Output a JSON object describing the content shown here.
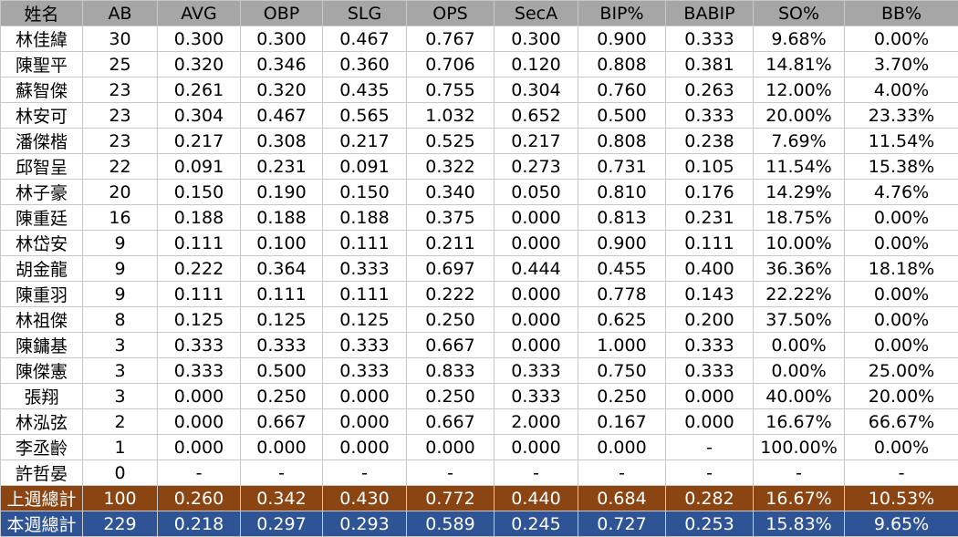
{
  "table": {
    "headers": [
      "姓名",
      "AB",
      "AVG",
      "OBP",
      "SLG",
      "OPS",
      "SecA",
      "BIP%",
      "BABIP",
      "SO%",
      "BB%"
    ],
    "rows": [
      [
        "林佳緯",
        "30",
        "0.300",
        "0.300",
        "0.467",
        "0.767",
        "0.300",
        "0.900",
        "0.333",
        "9.68%",
        "0.00%"
      ],
      [
        "陳聖平",
        "25",
        "0.320",
        "0.346",
        "0.360",
        "0.706",
        "0.120",
        "0.808",
        "0.381",
        "14.81%",
        "3.70%"
      ],
      [
        "蘇智傑",
        "23",
        "0.261",
        "0.320",
        "0.435",
        "0.755",
        "0.304",
        "0.760",
        "0.263",
        "12.00%",
        "4.00%"
      ],
      [
        "林安可",
        "23",
        "0.304",
        "0.467",
        "0.565",
        "1.032",
        "0.652",
        "0.500",
        "0.333",
        "20.00%",
        "23.33%"
      ],
      [
        "潘傑楷",
        "23",
        "0.217",
        "0.308",
        "0.217",
        "0.525",
        "0.217",
        "0.808",
        "0.238",
        "7.69%",
        "11.54%"
      ],
      [
        "邱智呈",
        "22",
        "0.091",
        "0.231",
        "0.091",
        "0.322",
        "0.273",
        "0.731",
        "0.105",
        "11.54%",
        "15.38%"
      ],
      [
        "林子豪",
        "20",
        "0.150",
        "0.190",
        "0.150",
        "0.340",
        "0.050",
        "0.810",
        "0.176",
        "14.29%",
        "4.76%"
      ],
      [
        "陳重廷",
        "16",
        "0.188",
        "0.188",
        "0.188",
        "0.375",
        "0.000",
        "0.813",
        "0.231",
        "18.75%",
        "0.00%"
      ],
      [
        "林岱安",
        "9",
        "0.111",
        "0.100",
        "0.111",
        "0.211",
        "0.000",
        "0.900",
        "0.111",
        "10.00%",
        "0.00%"
      ],
      [
        "胡金龍",
        "9",
        "0.222",
        "0.364",
        "0.333",
        "0.697",
        "0.444",
        "0.455",
        "0.400",
        "36.36%",
        "18.18%"
      ],
      [
        "陳重羽",
        "9",
        "0.111",
        "0.111",
        "0.111",
        "0.222",
        "0.000",
        "0.778",
        "0.143",
        "22.22%",
        "0.00%"
      ],
      [
        "林祖傑",
        "8",
        "0.125",
        "0.125",
        "0.125",
        "0.250",
        "0.000",
        "0.625",
        "0.200",
        "37.50%",
        "0.00%"
      ],
      [
        "陳鏞基",
        "3",
        "0.333",
        "0.333",
        "0.333",
        "0.667",
        "0.000",
        "1.000",
        "0.333",
        "0.00%",
        "0.00%"
      ],
      [
        "陳傑憲",
        "3",
        "0.333",
        "0.500",
        "0.333",
        "0.833",
        "0.333",
        "0.750",
        "0.333",
        "0.00%",
        "25.00%"
      ],
      [
        "張翔",
        "3",
        "0.000",
        "0.250",
        "0.000",
        "0.250",
        "0.333",
        "0.250",
        "0.000",
        "40.00%",
        "20.00%"
      ],
      [
        "林泓弦",
        "2",
        "0.000",
        "0.667",
        "0.000",
        "0.667",
        "2.000",
        "0.167",
        "0.000",
        "16.67%",
        "66.67%"
      ],
      [
        "李丞齡",
        "1",
        "0.000",
        "0.000",
        "0.000",
        "0.000",
        "0.000",
        "0.000",
        "-",
        "100.00%",
        "0.00%"
      ],
      [
        "許哲晏",
        "0",
        "-",
        "-",
        "-",
        "-",
        "-",
        "-",
        "-",
        "-",
        "-"
      ]
    ],
    "totals": [
      {
        "cells": [
          "上週總計",
          "100",
          "0.260",
          "0.342",
          "0.430",
          "0.772",
          "0.440",
          "0.684",
          "0.282",
          "16.67%",
          "10.53%"
        ],
        "color": "#8b4513"
      },
      {
        "cells": [
          "本週總計",
          "229",
          "0.218",
          "0.297",
          "0.293",
          "0.589",
          "0.245",
          "0.727",
          "0.253",
          "15.83%",
          "9.65%"
        ],
        "color": "#2f5496"
      }
    ]
  }
}
